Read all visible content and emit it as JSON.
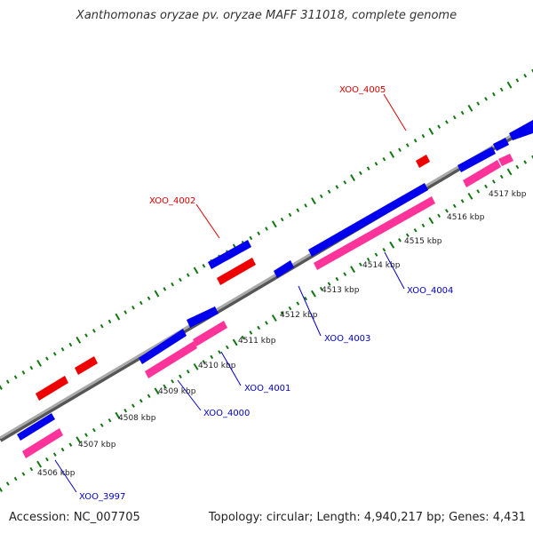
{
  "title": "Xanthomonas oryzae pv. oryzae MAFF 311018, complete genome",
  "footer": {
    "accession": "Accession: NC_007705",
    "summary": "Topology: circular; Length: 4,940,217 bp; Genes: 4,431"
  },
  "colors": {
    "backbone": "#888888",
    "ticks": "#117711",
    "forward_gene": "#0000ee",
    "reverse_gene": "#ff3399",
    "highlight_gene": "#ee0000",
    "label_forward": "#0000cc",
    "label_highlight": "#dd0000"
  },
  "scale_labels": [
    "4506 kbp",
    "4507 kbp",
    "4508 kbp",
    "4509 kbp",
    "4510 kbp",
    "4511 kbp",
    "4512 kbp",
    "4513 kbp",
    "4514 kbp",
    "4515 kbp",
    "4516 kbp",
    "4517 kbp"
  ],
  "gene_labels": {
    "xoo_3997": "XOO_3997",
    "xoo_4000": "XOO_4000",
    "xoo_4001": "XOO_4001",
    "xoo_4002": "XOO_4002",
    "xoo_4003": "XOO_4003",
    "xoo_4004": "XOO_4004",
    "xoo_4005": "XOO_4005"
  }
}
